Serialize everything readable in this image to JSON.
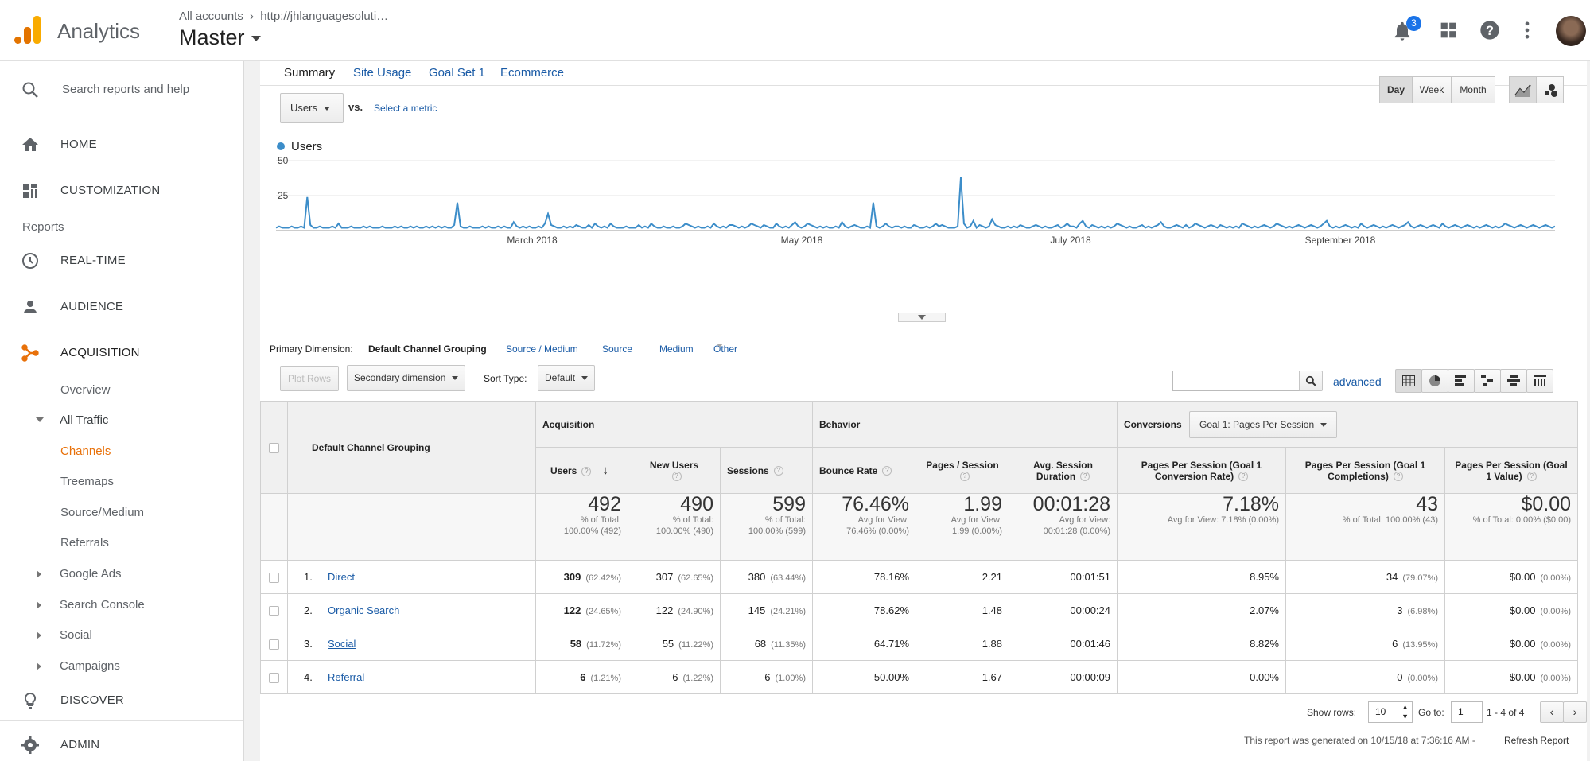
{
  "topbar": {
    "brand": "Analytics",
    "account_breadcrumb": "All accounts",
    "property": "http://jhlanguagesoluti…",
    "view_name": "Master",
    "notification_count": "3",
    "icons": [
      "bell-icon",
      "apps-grid-icon",
      "help-icon",
      "more-vert-icon"
    ]
  },
  "sidebar": {
    "search_placeholder": "Search reports and help",
    "home": "HOME",
    "customization": "CUSTOMIZATION",
    "reports_label": "Reports",
    "realtime": "REAL-TIME",
    "audience": "AUDIENCE",
    "acquisition": "ACQUISITION",
    "sub": {
      "overview": "Overview",
      "all_traffic": "All Traffic",
      "channels": "Channels",
      "treemaps": "Treemaps",
      "source_medium": "Source/Medium",
      "referrals": "Referrals",
      "google_ads": "Google Ads",
      "search_console": "Search Console",
      "social": "Social",
      "campaigns": "Campaigns"
    },
    "discover": "DISCOVER",
    "admin": "ADMIN",
    "accent_color": "#e8710a"
  },
  "tabs": [
    "Summary",
    "Site Usage",
    "Goal Set 1",
    "Ecommerce"
  ],
  "metric_selector": {
    "metric": "Users",
    "vs": "vs.",
    "select_metric": "Select a metric"
  },
  "period_buttons": [
    "Day",
    "Week",
    "Month"
  ],
  "chart_data": {
    "type": "line",
    "series": [
      {
        "name": "Users",
        "color": "#3c8dc9",
        "values": [
          2,
          3,
          2,
          2,
          2,
          3,
          2,
          2,
          3,
          2,
          24,
          4,
          2,
          2,
          3,
          2,
          2,
          2,
          3,
          2,
          5,
          2,
          2,
          2,
          3,
          2,
          2,
          2,
          3,
          2,
          3,
          2,
          2,
          2,
          3,
          2,
          2,
          2,
          3,
          2,
          3,
          2,
          2,
          3,
          2,
          3,
          2,
          2,
          3,
          2,
          3,
          2,
          3,
          2,
          3,
          2,
          2,
          4,
          20,
          3,
          2,
          2,
          3,
          2,
          2,
          2,
          3,
          2,
          3,
          2,
          2,
          3,
          2,
          3,
          2,
          2,
          6,
          3,
          2,
          3,
          2,
          3,
          2,
          2,
          3,
          2,
          5,
          12,
          4,
          3,
          2,
          2,
          3,
          2,
          3,
          2,
          4,
          3,
          2,
          2,
          4,
          2,
          5,
          3,
          2,
          3,
          2,
          5,
          3,
          2,
          2,
          2,
          3,
          2,
          2,
          2,
          4,
          2,
          3,
          2,
          5,
          3,
          2,
          2,
          3,
          2,
          2,
          3,
          2,
          2,
          3,
          5,
          4,
          3,
          2,
          3,
          2,
          2,
          3,
          2,
          5,
          3,
          2,
          3,
          2,
          4,
          4,
          3,
          2,
          3,
          2,
          3,
          5,
          4,
          3,
          2,
          4,
          3,
          2,
          2,
          5,
          3,
          2,
          3,
          2,
          4,
          6,
          3,
          2,
          3,
          5,
          4,
          3,
          2,
          3,
          2,
          3,
          2,
          2,
          3,
          2,
          6,
          3,
          2,
          3,
          4,
          3,
          2,
          2,
          3,
          2,
          20,
          3,
          2,
          3,
          5,
          3,
          2,
          3,
          3,
          2,
          3,
          2,
          2,
          4,
          3,
          2,
          2,
          3,
          2,
          3,
          5,
          3,
          4,
          3,
          2,
          2,
          2,
          3,
          38,
          5,
          2,
          3,
          7,
          2,
          4,
          3,
          2,
          3,
          8,
          4,
          3,
          2,
          2,
          3,
          2,
          3,
          2,
          4,
          3,
          2,
          2,
          3,
          4,
          3,
          2,
          3,
          2,
          2,
          3,
          4,
          2,
          3,
          5,
          3,
          3,
          2,
          5,
          7,
          3,
          2,
          4,
          3,
          2,
          3,
          2,
          3,
          2,
          3,
          5,
          4,
          3,
          2,
          3,
          2,
          2,
          3,
          4,
          2,
          3,
          2,
          3,
          4,
          6,
          3,
          2,
          2,
          3,
          4,
          3,
          2,
          4,
          2,
          3,
          5,
          4,
          3,
          2,
          3,
          4,
          3,
          2,
          4,
          3,
          2,
          3,
          2,
          3,
          2,
          5,
          4,
          3,
          2,
          3,
          2,
          3,
          4,
          3,
          2,
          3,
          5,
          4,
          3,
          2,
          3,
          2,
          3,
          4,
          3,
          2,
          3,
          4,
          3,
          2,
          3,
          5,
          7,
          3,
          2,
          3,
          2,
          3,
          4,
          3,
          2,
          3,
          2,
          5,
          3,
          2,
          3,
          4,
          3,
          2,
          3,
          2,
          3,
          4,
          3,
          2,
          3,
          4,
          6,
          3,
          2,
          3,
          4,
          3,
          2,
          3,
          4,
          3,
          2,
          5,
          3,
          2,
          3,
          4,
          3,
          2,
          3,
          4,
          3,
          2,
          3,
          2,
          3,
          4,
          3,
          2,
          3,
          2,
          3,
          5,
          4,
          3,
          2,
          3,
          4,
          3,
          2,
          3,
          4,
          3,
          2,
          3,
          4,
          3,
          2,
          3
        ]
      }
    ],
    "x_tick_labels": [
      "March 2018",
      "May 2018",
      "July 2018",
      "September 2018"
    ],
    "y_tick_labels": [
      "50",
      "25"
    ],
    "ylim": [
      0,
      50
    ],
    "grid": true,
    "legend": "top-left"
  },
  "primary_dimension": {
    "label": "Primary Dimension:",
    "active": "Default Channel Grouping",
    "options": [
      "Source / Medium",
      "Source",
      "Medium",
      "Other"
    ]
  },
  "toolbar": {
    "plot_rows": "Plot Rows",
    "secondary_dimension": "Secondary dimension",
    "sort_type_label": "Sort Type:",
    "sort_type_value": "Default",
    "advanced": "advanced"
  },
  "table": {
    "dim_header": "Default Channel Grouping",
    "groups": {
      "acquisition": "Acquisition",
      "behavior": "Behavior",
      "conversions": "Conversions",
      "goal_select": "Goal 1: Pages Per Session"
    },
    "columns": [
      "Users",
      "New Users",
      "Sessions",
      "Bounce Rate",
      "Pages / Session",
      "Avg. Session Duration",
      "Pages Per Session (Goal 1 Conversion Rate)",
      "Pages Per Session (Goal 1 Completions)",
      "Pages Per Session (Goal 1 Value)"
    ],
    "totals": [
      {
        "big": "492",
        "small1": "% of Total:",
        "small2": "100.00% (492)"
      },
      {
        "big": "490",
        "small1": "% of Total:",
        "small2": "100.00% (490)"
      },
      {
        "big": "599",
        "small1": "% of Total:",
        "small2": "100.00% (599)"
      },
      {
        "big": "76.46%",
        "small1": "Avg for View:",
        "small2": "76.46% (0.00%)"
      },
      {
        "big": "1.99",
        "small1": "Avg for View:",
        "small2": "1.99 (0.00%)"
      },
      {
        "big": "00:01:28",
        "small1": "Avg for View:",
        "small2": "00:01:28 (0.00%)"
      },
      {
        "big": "7.18%",
        "small1": "Avg for View: 7.18% (0.00%)",
        "small2": ""
      },
      {
        "big": "43",
        "small1": "% of Total: 100.00% (43)",
        "small2": ""
      },
      {
        "big": "$0.00",
        "small1": "% of Total: 0.00% ($0.00)",
        "small2": ""
      }
    ],
    "rows": [
      {
        "n": "1.",
        "name": "Direct",
        "users": "309",
        "users_pct": "(62.42%)",
        "new": "307",
        "new_pct": "(62.65%)",
        "sess": "380",
        "sess_pct": "(63.44%)",
        "bounce": "78.16%",
        "pps": "2.21",
        "dur": "00:01:51",
        "conv": "8.95%",
        "comp": "34",
        "comp_pct": "(79.07%)",
        "val": "$0.00",
        "val_pct": "(0.00%)"
      },
      {
        "n": "2.",
        "name": "Organic Search",
        "users": "122",
        "users_pct": "(24.65%)",
        "new": "122",
        "new_pct": "(24.90%)",
        "sess": "145",
        "sess_pct": "(24.21%)",
        "bounce": "78.62%",
        "pps": "1.48",
        "dur": "00:00:24",
        "conv": "2.07%",
        "comp": "3",
        "comp_pct": "(6.98%)",
        "val": "$0.00",
        "val_pct": "(0.00%)"
      },
      {
        "n": "3.",
        "name": "Social",
        "users": "58",
        "users_pct": "(11.72%)",
        "new": "55",
        "new_pct": "(11.22%)",
        "sess": "68",
        "sess_pct": "(11.35%)",
        "bounce": "64.71%",
        "pps": "1.88",
        "dur": "00:01:46",
        "conv": "8.82%",
        "comp": "6",
        "comp_pct": "(13.95%)",
        "val": "$0.00",
        "val_pct": "(0.00%)"
      },
      {
        "n": "4.",
        "name": "Referral",
        "users": "6",
        "users_pct": "(1.21%)",
        "new": "6",
        "new_pct": "(1.22%)",
        "sess": "6",
        "sess_pct": "(1.00%)",
        "bounce": "50.00%",
        "pps": "1.67",
        "dur": "00:00:09",
        "conv": "0.00%",
        "comp": "0",
        "comp_pct": "(0.00%)",
        "val": "$0.00",
        "val_pct": "(0.00%)"
      }
    ]
  },
  "footer": {
    "show_rows_label": "Show rows:",
    "show_rows_value": "10",
    "goto_label": "Go to:",
    "goto_value": "1",
    "range": "1 - 4 of 4",
    "generated": "This report was generated on 10/15/18 at 7:36:16 AM -",
    "refresh": "Refresh Report"
  }
}
